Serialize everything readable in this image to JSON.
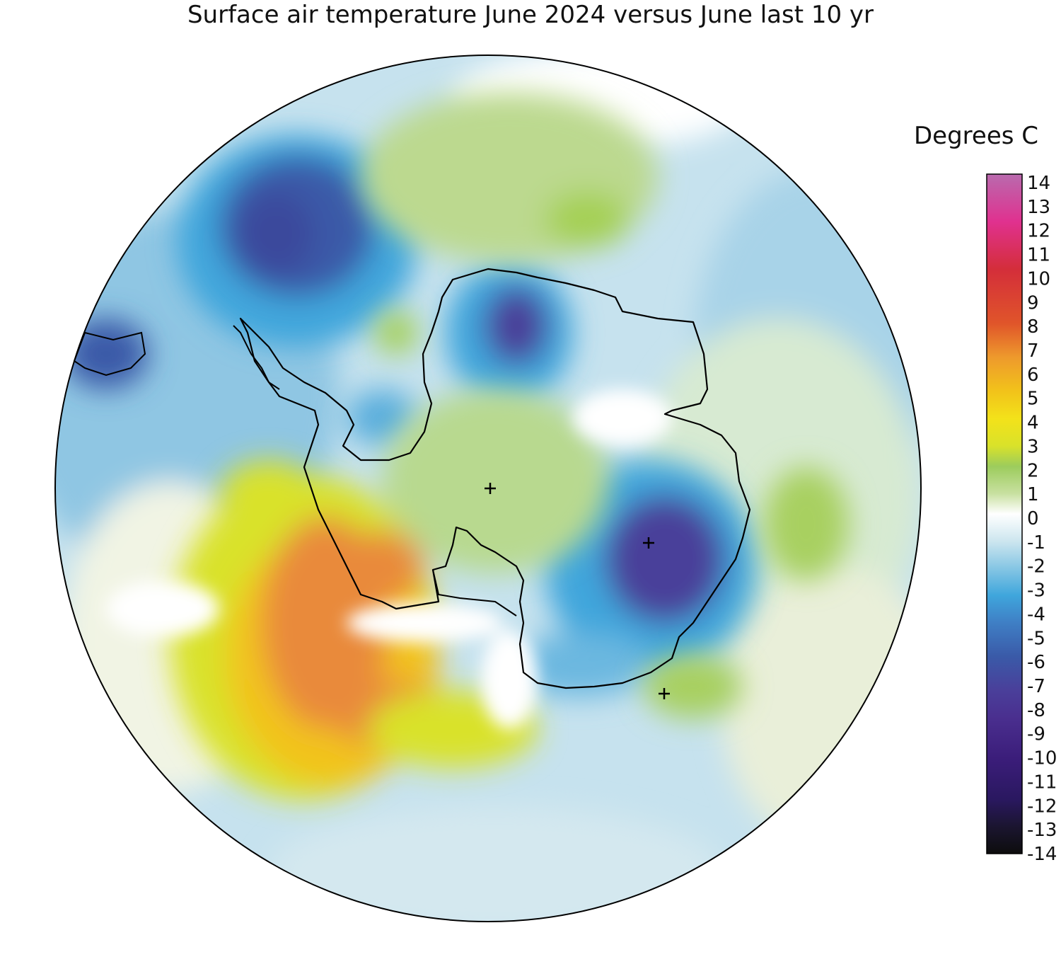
{
  "title": "Surface air temperature June 2024 versus June last 10 yr",
  "legend": {
    "title": "Degrees C",
    "ticks": [
      "14",
      "13",
      "12",
      "11",
      "10",
      "9",
      "8",
      "7",
      "6",
      "5",
      "4",
      "3",
      "2",
      "1",
      "0",
      "-1",
      "-2",
      "-3",
      "-4",
      "-5",
      "-6",
      "-7",
      "-8",
      "-9",
      "-10",
      "-11",
      "-12",
      "-13",
      "-14"
    ],
    "range": [
      -14,
      14
    ],
    "colors": [
      "#0d0d0d",
      "#1b1530",
      "#2a1860",
      "#3b1d7a",
      "#4a2f8f",
      "#4a3f9a",
      "#3a5aa8",
      "#3f7fc5",
      "#3fa6dc",
      "#86c6e4",
      "#cde6ef",
      "#ffffff",
      "#dce9bd",
      "#b8d98f",
      "#9ccc5c",
      "#d9e22a",
      "#f3e21a",
      "#f2c31a",
      "#ee9a2c",
      "#e87a2c",
      "#e0552a",
      "#d63a2a",
      "#d42e3a",
      "#d4296a",
      "#e0318f",
      "#c64ba6",
      "#b96aae"
    ]
  },
  "colors": {
    "ocean_cold": "#8fc6e3",
    "strong_cold": "#3b4a9c",
    "warm": "#e98a3a",
    "neutral": "#ffffff",
    "coastline": "#000000"
  }
}
